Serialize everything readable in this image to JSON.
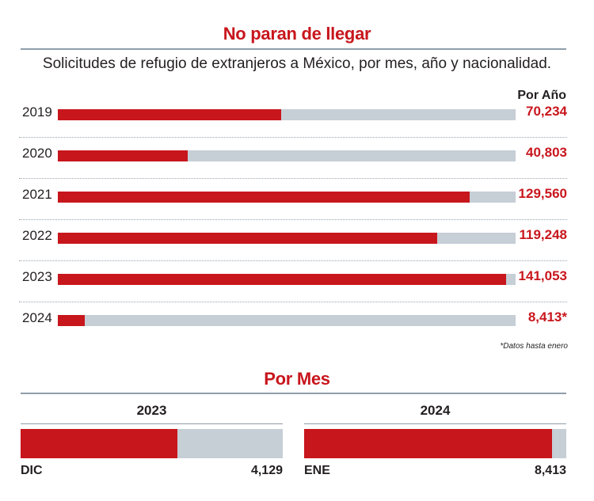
{
  "title": "No paran de llegar",
  "subtitle": "Solicitudes de refugio de extranjeros a México, por mes, año y nacionalidad.",
  "colors": {
    "accent": "#c8161d",
    "track": "#c6ced6",
    "rule": "#8f9eaa"
  },
  "chart_data": [
    {
      "type": "bar",
      "orientation": "horizontal",
      "column_header": "Por Año",
      "categories": [
        "2019",
        "2020",
        "2021",
        "2022",
        "2023",
        "2024"
      ],
      "values": [
        70234,
        40803,
        129560,
        119248,
        141053,
        8413
      ],
      "value_labels": [
        "70,234",
        "40,803",
        "129,560",
        "119,248",
        "141,053",
        "8,413*"
      ],
      "xlim": [
        0,
        144000
      ],
      "footnote": "*Datos hasta enero"
    },
    {
      "type": "bar",
      "orientation": "horizontal",
      "title": "Por Mes",
      "panels": [
        {
          "year": "2023",
          "month": "DIC",
          "value": 4129,
          "value_label": "4,129",
          "max": 6900
        },
        {
          "year": "2024",
          "month": "ENE",
          "value": 8413,
          "value_label": "8,413",
          "max": 8900
        }
      ]
    }
  ]
}
